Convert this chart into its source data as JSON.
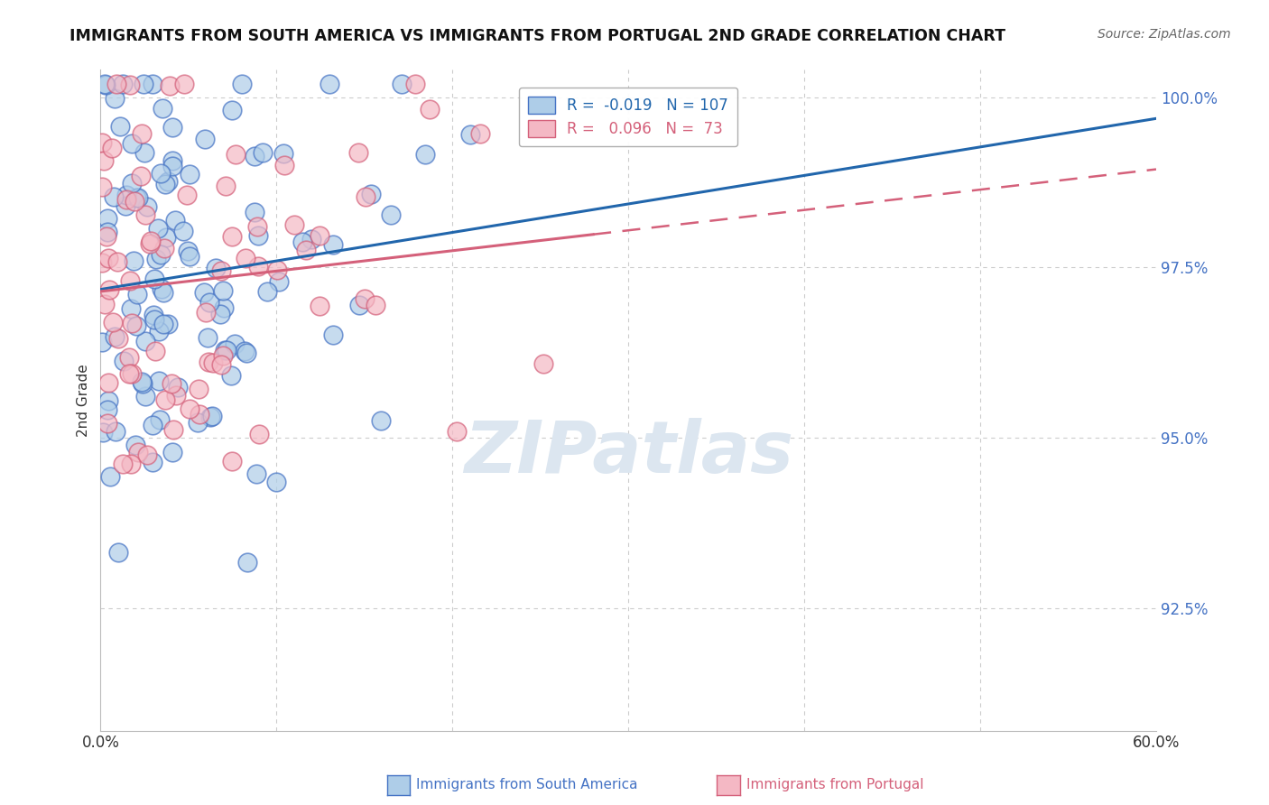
{
  "title": "IMMIGRANTS FROM SOUTH AMERICA VS IMMIGRANTS FROM PORTUGAL 2ND GRADE CORRELATION CHART",
  "source": "Source: ZipAtlas.com",
  "xlabel_legend1": "Immigrants from South America",
  "xlabel_legend2": "Immigrants from Portugal",
  "ylabel": "2nd Grade",
  "xlim": [
    0.0,
    0.6
  ],
  "ylim": [
    0.907,
    1.004
  ],
  "yticks": [
    0.925,
    0.95,
    0.975,
    1.0
  ],
  "ytick_labels": [
    "92.5%",
    "95.0%",
    "97.5%",
    "100.0%"
  ],
  "R_blue": -0.019,
  "N_blue": 107,
  "R_pink": 0.096,
  "N_pink": 73,
  "blue_color": "#aecde8",
  "pink_color": "#f4b8c4",
  "blue_edge_color": "#4472c4",
  "pink_edge_color": "#d4607a",
  "blue_line_color": "#2166ac",
  "pink_line_color": "#d4607a",
  "watermark": "ZIPatlas",
  "watermark_color": "#dce6f0",
  "background_color": "#ffffff",
  "title_fontsize": 12.5
}
